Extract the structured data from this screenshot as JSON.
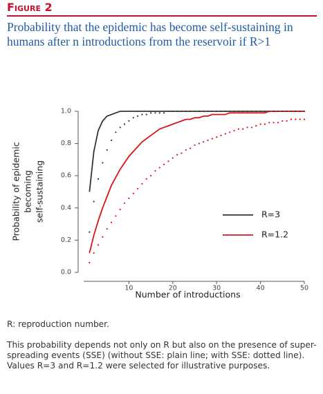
{
  "chart_data": {
    "type": "line",
    "figure_label": "Figure 2",
    "title": "Probability that the epidemic has become self-sustaining in humans after n introductions from the reservoir if R>1",
    "xlabel": "Number of introductions",
    "ylabel": [
      "Probability of epidemic",
      "becoming",
      "self-sustaining"
    ],
    "x": [
      1,
      2,
      3,
      4,
      5,
      6,
      7,
      8,
      9,
      10,
      11,
      12,
      13,
      14,
      15,
      16,
      17,
      18,
      19,
      20,
      21,
      22,
      23,
      24,
      25,
      26,
      27,
      28,
      29,
      30,
      31,
      32,
      33,
      34,
      35,
      36,
      37,
      38,
      39,
      40,
      41,
      42,
      43,
      44,
      45,
      46,
      47,
      48,
      49,
      50
    ],
    "series": [
      {
        "name": "R=3",
        "color": "#333333",
        "style": "solid",
        "values": [
          0.5,
          0.75,
          0.88,
          0.94,
          0.97,
          0.98,
          0.99,
          1,
          1,
          1,
          1,
          1,
          1,
          1,
          1,
          1,
          1,
          1,
          1,
          1,
          1,
          1,
          1,
          1,
          1,
          1,
          1,
          1,
          1,
          1,
          1,
          1,
          1,
          1,
          1,
          1,
          1,
          1,
          1,
          1,
          1,
          1,
          1,
          1,
          1,
          1,
          1,
          1,
          1,
          1
        ]
      },
      {
        "name": "R=1.2",
        "color": "#d7141a",
        "style": "solid",
        "values": [
          0.12,
          0.23,
          0.32,
          0.4,
          0.47,
          0.54,
          0.59,
          0.64,
          0.68,
          0.72,
          0.75,
          0.78,
          0.81,
          0.83,
          0.85,
          0.87,
          0.89,
          0.9,
          0.91,
          0.92,
          0.93,
          0.94,
          0.95,
          0.95,
          0.96,
          0.96,
          0.97,
          0.97,
          0.98,
          0.98,
          0.98,
          0.98,
          0.99,
          0.99,
          0.99,
          0.99,
          0.99,
          0.99,
          0.99,
          0.99,
          0.99,
          1,
          1,
          1,
          1,
          1,
          1,
          1,
          1,
          1
        ]
      },
      {
        "color": "#333333",
        "style": "dotted",
        "values": [
          0.25,
          0.44,
          0.58,
          0.68,
          0.76,
          0.82,
          0.87,
          0.9,
          0.92,
          0.94,
          0.96,
          0.97,
          0.98,
          0.98,
          0.99,
          0.99,
          0.99,
          0.99,
          1,
          1,
          1,
          1,
          1,
          1,
          1,
          1,
          1,
          1,
          1,
          1,
          1,
          1,
          1,
          1,
          1,
          1,
          1,
          1,
          1,
          1,
          1,
          1,
          1,
          1,
          1,
          1,
          1,
          1,
          1,
          1
        ]
      },
      {
        "color": "#d7141a",
        "style": "dotted",
        "values": [
          0.06,
          0.12,
          0.17,
          0.22,
          0.27,
          0.31,
          0.35,
          0.39,
          0.43,
          0.46,
          0.49,
          0.52,
          0.55,
          0.58,
          0.6,
          0.63,
          0.65,
          0.67,
          0.69,
          0.71,
          0.73,
          0.74,
          0.76,
          0.77,
          0.79,
          0.8,
          0.81,
          0.82,
          0.83,
          0.84,
          0.85,
          0.86,
          0.87,
          0.88,
          0.89,
          0.89,
          0.9,
          0.9,
          0.91,
          0.92,
          0.92,
          0.93,
          0.93,
          0.93,
          0.94,
          0.94,
          0.95,
          0.95,
          0.95,
          0.95
        ]
      }
    ],
    "xlim": [
      0,
      50
    ],
    "xticks": [
      10,
      20,
      30,
      40,
      50
    ],
    "ylim": [
      0,
      1
    ],
    "yticks": [
      {
        "value": 0,
        "label": "0.0"
      },
      0.2,
      0.4,
      0.6,
      0.8,
      {
        "value": 1,
        "label": "1.0"
      }
    ],
    "grid": false,
    "legend": "right",
    "notes": [
      "R: reproduction number.",
      "This probability depends not only on R but also on the presence of super- spreading events (SSE) (without SSE: plain line; with SSE: dotted line). Values R=3 and R=1.2 were selected for illustrative purposes."
    ]
  }
}
